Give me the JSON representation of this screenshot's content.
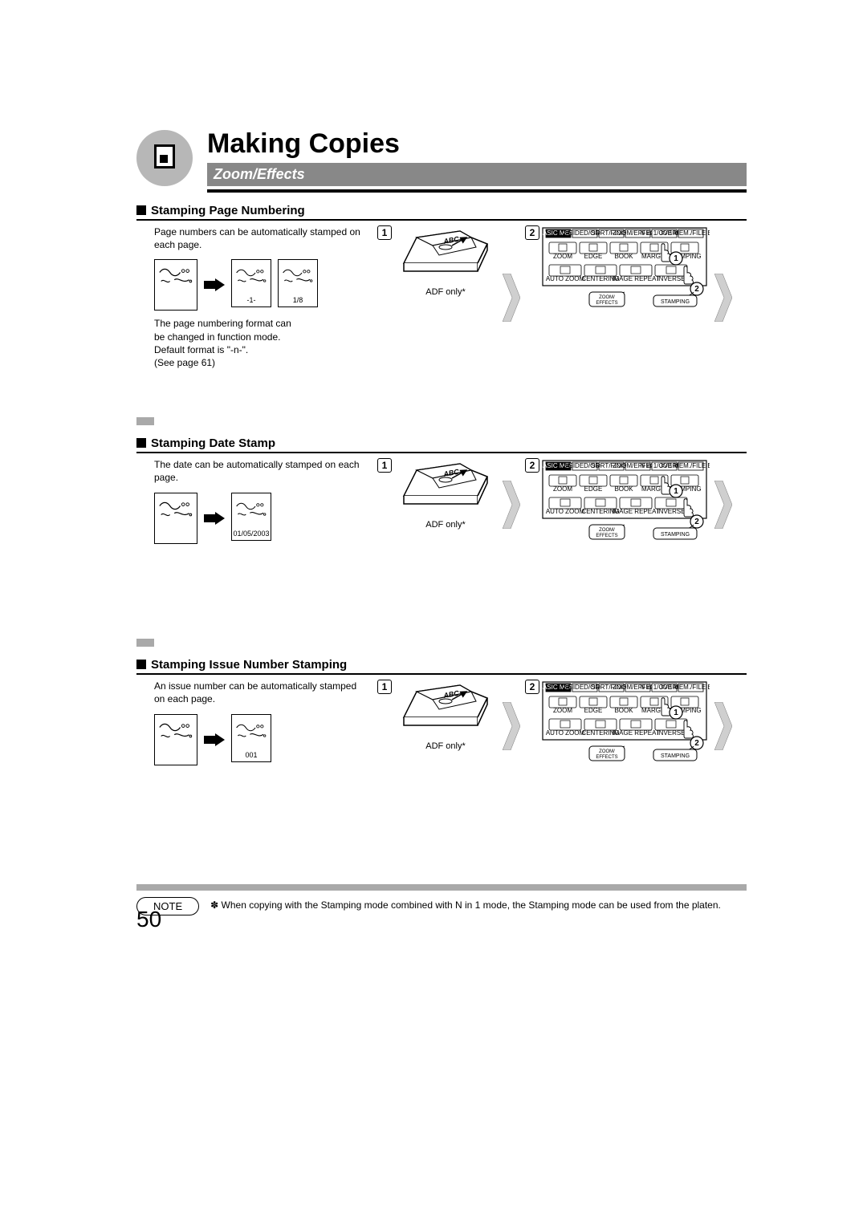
{
  "header": {
    "title": "Making Copies",
    "subtitle": "Zoom/Effects"
  },
  "sections": [
    {
      "heading": "Stamping Page Numbering",
      "intro": "Page numbers can be automatically stamped on each page.",
      "illus_captions": [
        "-1-",
        "1/8"
      ],
      "box_count": 3,
      "note": "The page numbering format can be changed in function mode.\nDefault format is \"-n-\".\n(See page 61)",
      "adf_caption": "ADF only*",
      "panel_bottom_left": "ZOOM/\nEFFECTS",
      "panel_bottom_right": "STAMPING"
    },
    {
      "heading": "Stamping Date Stamp",
      "intro": "The date can be automatically stamped on each page.",
      "illus_captions": [
        "01/05/2003"
      ],
      "box_count": 2,
      "note": "",
      "adf_caption": "ADF only*",
      "panel_bottom_left": "ZOOM/\nEFFECTS",
      "panel_bottom_right": "STAMPING"
    },
    {
      "heading": "Stamping Issue Number Stamping",
      "intro": "An issue number can be automatically stamped on each page.",
      "illus_captions": [
        "001"
      ],
      "box_count": 2,
      "note": "",
      "adf_caption": "ADF only*",
      "panel_bottom_left": "ZOOM/\nEFFECTS",
      "panel_bottom_right": "STAMPING"
    }
  ],
  "panel_top_labels": [
    "BASIC MENU",
    "2-SIDED/ORIG",
    "SORT/FINISH",
    "ZOOM/EFFECTS",
    "N in 1/OVERLAY",
    "JOB MEM./FILE EDIT"
  ],
  "panel_btn_row1": [
    "ZOOM",
    "EDGE",
    "BOOK",
    "MARGIN",
    "STAMPING"
  ],
  "panel_btn_row2": [
    "AUTO ZOOM",
    "CENTERING",
    "IMAGE REPEAT",
    "INVERSE"
  ],
  "note_block": {
    "label": "NOTE",
    "text": "✽ When copying with the Stamping mode combined with N in 1 mode, the Stamping mode can be used from the platen."
  },
  "page_number": "50",
  "colors": {
    "header_gray": "#888888",
    "bar_gray": "#a9a9a9",
    "chevron_fill": "#cfcfcf",
    "circle_fill": "#cfcfcf"
  }
}
